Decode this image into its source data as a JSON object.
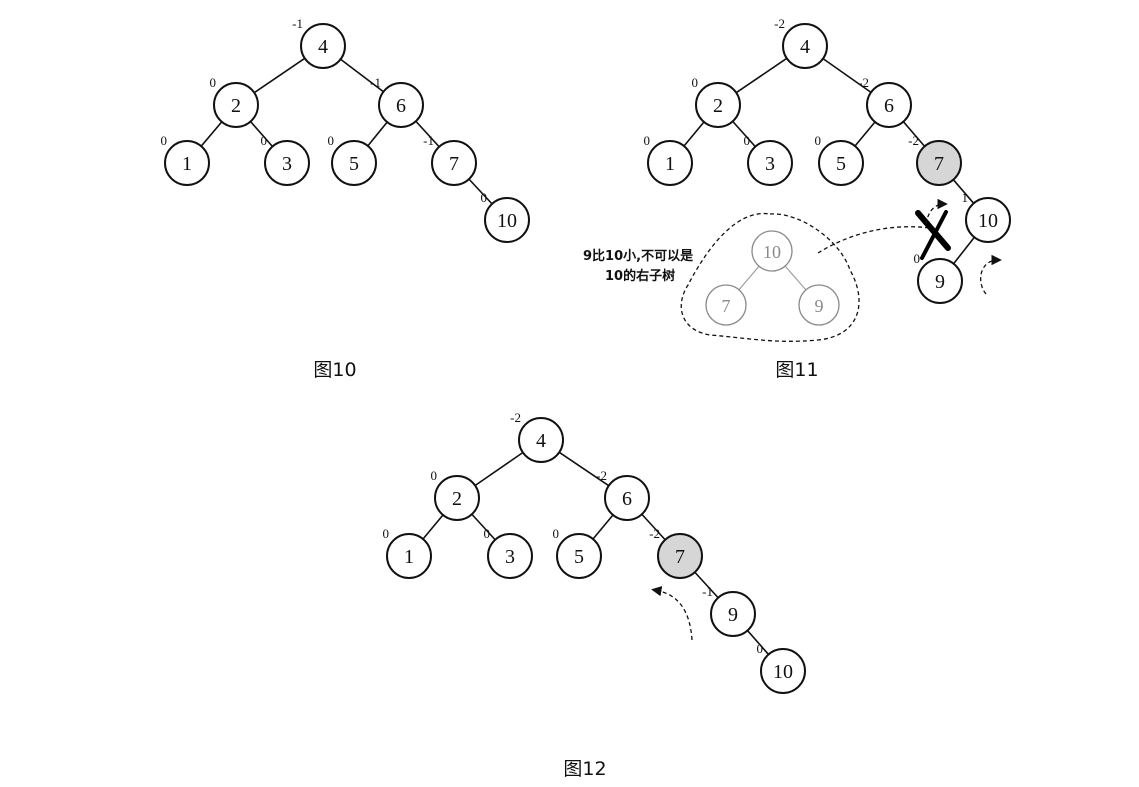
{
  "figures": [
    {
      "id": "fig10",
      "caption": "图10",
      "nodes": [
        {
          "key": "4",
          "label": "4",
          "balance": "-1",
          "highlight": false
        },
        {
          "key": "2",
          "label": "2",
          "balance": "0",
          "highlight": false
        },
        {
          "key": "6",
          "label": "6",
          "balance": "-1",
          "highlight": false
        },
        {
          "key": "1",
          "label": "1",
          "balance": "0",
          "highlight": false
        },
        {
          "key": "3",
          "label": "3",
          "balance": "0",
          "highlight": false
        },
        {
          "key": "5",
          "label": "5",
          "balance": "0",
          "highlight": false
        },
        {
          "key": "7",
          "label": "7",
          "balance": "-1",
          "highlight": false
        },
        {
          "key": "10",
          "label": "10",
          "balance": "0",
          "highlight": false
        }
      ],
      "edges": [
        [
          "4",
          "2"
        ],
        [
          "4",
          "6"
        ],
        [
          "2",
          "1"
        ],
        [
          "2",
          "3"
        ],
        [
          "6",
          "5"
        ],
        [
          "6",
          "7"
        ],
        [
          "7",
          "10"
        ]
      ]
    },
    {
      "id": "fig11",
      "caption": "图11",
      "nodes": [
        {
          "key": "4",
          "label": "4",
          "balance": "-2",
          "highlight": false
        },
        {
          "key": "2",
          "label": "2",
          "balance": "0",
          "highlight": false
        },
        {
          "key": "6",
          "label": "6",
          "balance": "-2",
          "highlight": false
        },
        {
          "key": "1",
          "label": "1",
          "balance": "0",
          "highlight": false
        },
        {
          "key": "3",
          "label": "3",
          "balance": "0",
          "highlight": false
        },
        {
          "key": "5",
          "label": "5",
          "balance": "0",
          "highlight": false
        },
        {
          "key": "7",
          "label": "7",
          "balance": "-2",
          "highlight": true
        },
        {
          "key": "10",
          "label": "10",
          "balance": "1",
          "highlight": false
        },
        {
          "key": "9",
          "label": "9",
          "balance": "0",
          "highlight": false
        }
      ],
      "edges": [
        [
          "4",
          "2"
        ],
        [
          "4",
          "6"
        ],
        [
          "2",
          "1"
        ],
        [
          "2",
          "3"
        ],
        [
          "6",
          "5"
        ],
        [
          "6",
          "7"
        ],
        [
          "7",
          "10"
        ],
        [
          "10",
          "9"
        ]
      ],
      "note": {
        "lines": [
          "9比10小,不可以是",
          "10的右子树"
        ],
        "ghost_nodes": [
          {
            "key": "g10",
            "label": "10"
          },
          {
            "key": "g7",
            "label": "7"
          },
          {
            "key": "g9",
            "label": "9"
          }
        ],
        "ghost_edges": [
          [
            "g10",
            "g7"
          ],
          [
            "g10",
            "g9"
          ]
        ]
      }
    },
    {
      "id": "fig12",
      "caption": "图12",
      "nodes": [
        {
          "key": "4",
          "label": "4",
          "balance": "-2",
          "highlight": false
        },
        {
          "key": "2",
          "label": "2",
          "balance": "0",
          "highlight": false
        },
        {
          "key": "6",
          "label": "6",
          "balance": "-2",
          "highlight": false
        },
        {
          "key": "1",
          "label": "1",
          "balance": "0",
          "highlight": false
        },
        {
          "key": "3",
          "label": "3",
          "balance": "0",
          "highlight": false
        },
        {
          "key": "5",
          "label": "5",
          "balance": "0",
          "highlight": false
        },
        {
          "key": "7",
          "label": "7",
          "balance": "-2",
          "highlight": true
        },
        {
          "key": "9",
          "label": "9",
          "balance": "-1",
          "highlight": false
        },
        {
          "key": "10",
          "label": "10",
          "balance": "0",
          "highlight": false
        }
      ],
      "edges": [
        [
          "4",
          "2"
        ],
        [
          "4",
          "6"
        ],
        [
          "2",
          "1"
        ],
        [
          "2",
          "3"
        ],
        [
          "6",
          "5"
        ],
        [
          "6",
          "7"
        ],
        [
          "7",
          "9"
        ],
        [
          "9",
          "10"
        ]
      ]
    }
  ]
}
